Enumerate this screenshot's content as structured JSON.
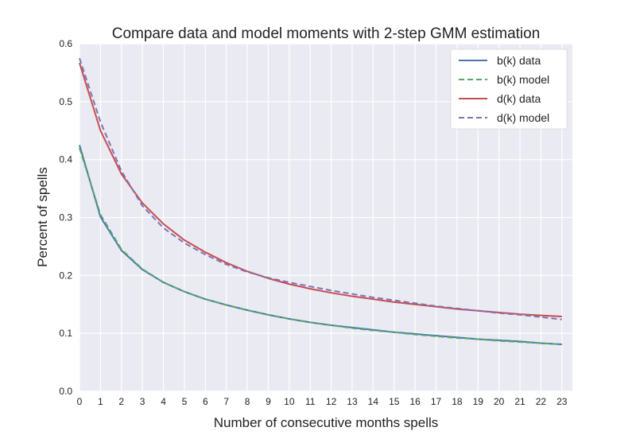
{
  "chart_data": {
    "type": "line",
    "title": "Compare data and model moments with 2-step GMM estimation",
    "xlabel": "Number of consecutive months spells",
    "ylabel": "Percent of spells",
    "xlim": [
      0,
      23.5
    ],
    "ylim": [
      0,
      0.6
    ],
    "grid": true,
    "legend_position": "top-right",
    "x": [
      0,
      1,
      2,
      3,
      4,
      5,
      6,
      7,
      8,
      9,
      10,
      11,
      12,
      13,
      14,
      15,
      16,
      17,
      18,
      19,
      20,
      21,
      22,
      23
    ],
    "x_ticks": [
      "0",
      "1",
      "2",
      "3",
      "4",
      "5",
      "6",
      "7",
      "8",
      "9",
      "10",
      "11",
      "12",
      "13",
      "14",
      "15",
      "16",
      "17",
      "18",
      "19",
      "20",
      "21",
      "22",
      "23"
    ],
    "y_ticks": [
      "0.0",
      "0.1",
      "0.2",
      "0.3",
      "0.4",
      "0.5",
      "0.6"
    ],
    "series": [
      {
        "name": "b(k) data",
        "color": "#4c72b0",
        "style": "solid",
        "values": [
          0.425,
          0.301,
          0.243,
          0.21,
          0.188,
          0.172,
          0.159,
          0.149,
          0.14,
          0.132,
          0.125,
          0.119,
          0.114,
          0.11,
          0.106,
          0.102,
          0.099,
          0.096,
          0.093,
          0.09,
          0.088,
          0.086,
          0.083,
          0.081
        ]
      },
      {
        "name": "b(k) model",
        "color": "#55a868",
        "style": "dashed",
        "values": [
          0.42,
          0.305,
          0.245,
          0.211,
          0.188,
          0.172,
          0.159,
          0.149,
          0.14,
          0.132,
          0.125,
          0.119,
          0.114,
          0.109,
          0.105,
          0.102,
          0.098,
          0.095,
          0.092,
          0.09,
          0.087,
          0.085,
          0.083,
          0.081
        ]
      },
      {
        "name": "d(k) data",
        "color": "#c44e52",
        "style": "solid",
        "values": [
          0.567,
          0.45,
          0.375,
          0.325,
          0.289,
          0.261,
          0.24,
          0.222,
          0.207,
          0.195,
          0.185,
          0.177,
          0.17,
          0.164,
          0.159,
          0.154,
          0.15,
          0.146,
          0.142,
          0.139,
          0.136,
          0.133,
          0.131,
          0.129
        ]
      },
      {
        "name": "d(k) model",
        "color": "#8172b2",
        "style": "dashed",
        "values": [
          0.575,
          0.465,
          0.38,
          0.32,
          0.282,
          0.256,
          0.236,
          0.219,
          0.206,
          0.196,
          0.188,
          0.181,
          0.174,
          0.168,
          0.162,
          0.157,
          0.152,
          0.147,
          0.143,
          0.139,
          0.135,
          0.132,
          0.128,
          0.124
        ]
      }
    ]
  }
}
